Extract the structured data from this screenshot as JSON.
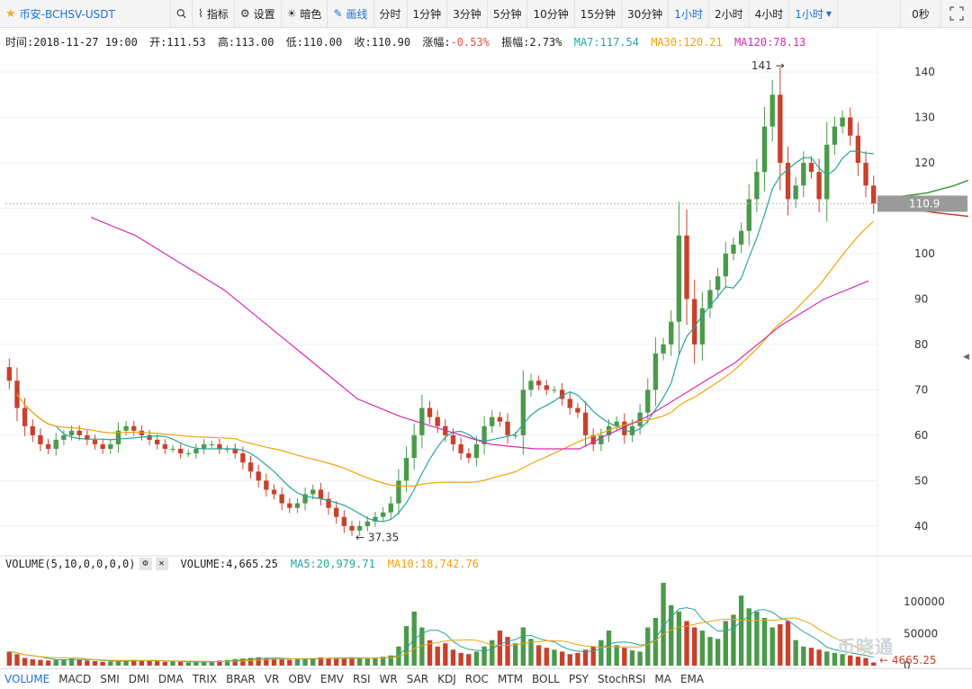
{
  "toolbar": {
    "symbol": "币安-BCHSV-USDT",
    "star_icon": "star-icon",
    "search_icon": "search-icon",
    "indicator_label": "指标",
    "settings_label": "设置",
    "dark_label": "暗色",
    "draw_label": "画线",
    "periods": [
      "分时",
      "1分钟",
      "3分钟",
      "5分钟",
      "10分钟",
      "15分钟",
      "30分钟",
      "1小时",
      "2小时",
      "4小时"
    ],
    "selected_period": "1小时",
    "period_dropdown": "1小时",
    "countdown": "0秒",
    "fullscreen_icon": "fullscreen-icon"
  },
  "info": {
    "time": "时间:2018-11-27 19:00",
    "open": "开:111.53",
    "high": "高:113.00",
    "low": "低:110.00",
    "close": "收:110.90",
    "change_label": "涨幅:",
    "change_value": "-0.53%",
    "amplitude": "振幅:2.73%",
    "ma7": "MA7:117.54",
    "ma30": "MA30:120.21",
    "ma120": "MA120:78.13"
  },
  "volume_info": {
    "label": "VOLUME(5,10,0,0,0,0)",
    "volume": "VOLUME:4,665.25",
    "ma5": "MA5:20,979.71",
    "ma10": "MA10:18,742.76"
  },
  "indicators": [
    "VOLUME",
    "MACD",
    "SMI",
    "DMI",
    "DMA",
    "TRIX",
    "BRAR",
    "VR",
    "OBV",
    "EMV",
    "RSI",
    "WR",
    "SAR",
    "KDJ",
    "ROC",
    "MTM",
    "BOLL",
    "PSY",
    "StochRSI",
    "MA",
    "EMA"
  ],
  "selected_indicator": "VOLUME",
  "watermark": "币晓通",
  "colors": {
    "up": "#4a9a4a",
    "down": "#c8412c",
    "ma7": "#26a69a",
    "ma30": "#f0a30a",
    "ma120": "#d62bb0",
    "accent": "#1f6fd1"
  },
  "chart_data": {
    "type": "candlestick",
    "y_ticks": [
      40,
      50,
      60,
      70,
      80,
      90,
      100,
      110,
      120,
      130,
      140
    ],
    "ylim": [
      36,
      142
    ],
    "high_marker": "141",
    "low_marker": "37.35",
    "current_price": "110.9",
    "closes": [
      72,
      66,
      62,
      60,
      58,
      57,
      59,
      60,
      61,
      60,
      59,
      58,
      57,
      58,
      61,
      62,
      61,
      60,
      59,
      58,
      57,
      57,
      56,
      56,
      57,
      58,
      58,
      57,
      57,
      56,
      54,
      52,
      50,
      48,
      47,
      45,
      44,
      45,
      47,
      48,
      46,
      44,
      42,
      40,
      39,
      40,
      41,
      42,
      43,
      45,
      50,
      55,
      60,
      66,
      64,
      62,
      60,
      58,
      56,
      55,
      58,
      62,
      64,
      63,
      60,
      60,
      70,
      72,
      71,
      70,
      70,
      68,
      66,
      65,
      60,
      58,
      60,
      62,
      63,
      60,
      62,
      65,
      70,
      78,
      80,
      85,
      104,
      90,
      80,
      88,
      92,
      95,
      100,
      102,
      105,
      112,
      118,
      128,
      135,
      120,
      112,
      115,
      120,
      118,
      112,
      124,
      128,
      130,
      126,
      120,
      115,
      111
    ],
    "ma120_points": [
      [
        0,
        108
      ],
      [
        10,
        104
      ],
      [
        20,
        98
      ],
      [
        30,
        92
      ],
      [
        40,
        84
      ],
      [
        50,
        76
      ],
      [
        60,
        68
      ],
      [
        70,
        64
      ],
      [
        80,
        61
      ],
      [
        90,
        58
      ],
      [
        100,
        57
      ],
      [
        110,
        57
      ],
      [
        116,
        60
      ],
      [
        125,
        64
      ],
      [
        135,
        70
      ],
      [
        145,
        76
      ],
      [
        155,
        84
      ],
      [
        165,
        90
      ],
      [
        175,
        94
      ]
    ],
    "volume_ticks": [
      0,
      50000,
      100000
    ],
    "volume_last": "4665.25",
    "volumes": [
      22000,
      18000,
      12000,
      10000,
      9000,
      8000,
      9000,
      10000,
      11000,
      9000,
      8000,
      7000,
      6000,
      6500,
      7000,
      8000,
      9000,
      8500,
      8000,
      7000,
      6000,
      6500,
      6000,
      5000,
      5500,
      6000,
      7000,
      8000,
      9000,
      10000,
      11000,
      12000,
      13000,
      12000,
      11000,
      10000,
      9000,
      10000,
      11000,
      12000,
      13000,
      12000,
      11000,
      12000,
      13000,
      12000,
      11000,
      12000,
      14000,
      16000,
      30000,
      62000,
      85000,
      60000,
      40000,
      30000,
      35000,
      25000,
      20000,
      18000,
      22000,
      30000,
      40000,
      55000,
      45000,
      35000,
      60000,
      42000,
      32000,
      28000,
      25000,
      22000,
      18000,
      20000,
      25000,
      30000,
      40000,
      55000,
      32000,
      28000,
      24000,
      22000,
      60000,
      75000,
      130000,
      95000,
      85000,
      70000,
      60000,
      55000,
      45000,
      42000,
      70000,
      80000,
      110000,
      90000,
      85000,
      75000,
      60000,
      65000,
      70000,
      40000,
      30000,
      28000,
      25000,
      22000,
      20000,
      18000,
      16000,
      14000,
      12000,
      5000
    ]
  }
}
